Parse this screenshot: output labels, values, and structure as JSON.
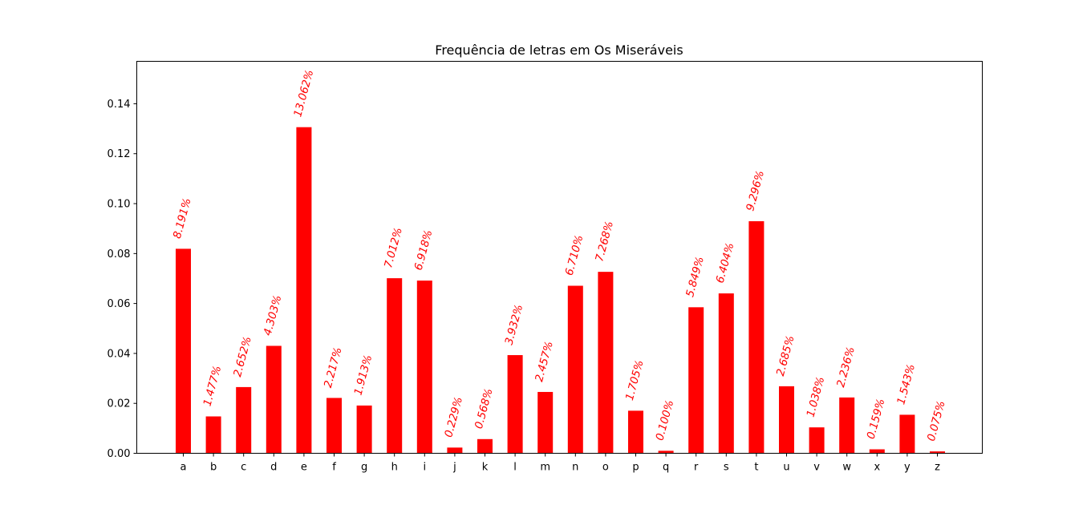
{
  "chart_data": {
    "type": "bar",
    "title": "Frequência de letras em Os Miseráveis",
    "xlabel": "",
    "ylabel": "",
    "categories": [
      "a",
      "b",
      "c",
      "d",
      "e",
      "f",
      "g",
      "h",
      "i",
      "j",
      "k",
      "l",
      "m",
      "n",
      "o",
      "p",
      "q",
      "r",
      "s",
      "t",
      "u",
      "v",
      "w",
      "x",
      "y",
      "z"
    ],
    "values": [
      0.08191,
      0.01477,
      0.02652,
      0.04303,
      0.13062,
      0.02217,
      0.01913,
      0.07012,
      0.06918,
      0.00229,
      0.00568,
      0.03932,
      0.02457,
      0.0671,
      0.07268,
      0.01705,
      0.001,
      0.05849,
      0.06404,
      0.09296,
      0.02685,
      0.01038,
      0.02236,
      0.00159,
      0.01543,
      0.00075
    ],
    "data_labels": [
      "8.191%",
      "1.477%",
      "2.652%",
      "4.303%",
      "13.062%",
      "2.217%",
      "1.913%",
      "7.012%",
      "6.918%",
      "0.229%",
      "0.568%",
      "3.932%",
      "2.457%",
      "6.710%",
      "7.268%",
      "1.705%",
      "0.100%",
      "5.849%",
      "6.404%",
      "9.296%",
      "2.685%",
      "1.038%",
      "2.236%",
      "0.159%",
      "1.543%",
      "0.075%"
    ],
    "yticks": [
      0.0,
      0.02,
      0.04,
      0.06,
      0.08,
      0.1,
      0.12,
      0.14
    ],
    "ytick_labels": [
      "0.00",
      "0.02",
      "0.04",
      "0.06",
      "0.08",
      "0.10",
      "0.12",
      "0.14"
    ],
    "ylim": [
      0,
      0.157
    ],
    "bar_color": "#ff0000",
    "label_color": "#ff0000",
    "grid": false,
    "legend": "none"
  }
}
